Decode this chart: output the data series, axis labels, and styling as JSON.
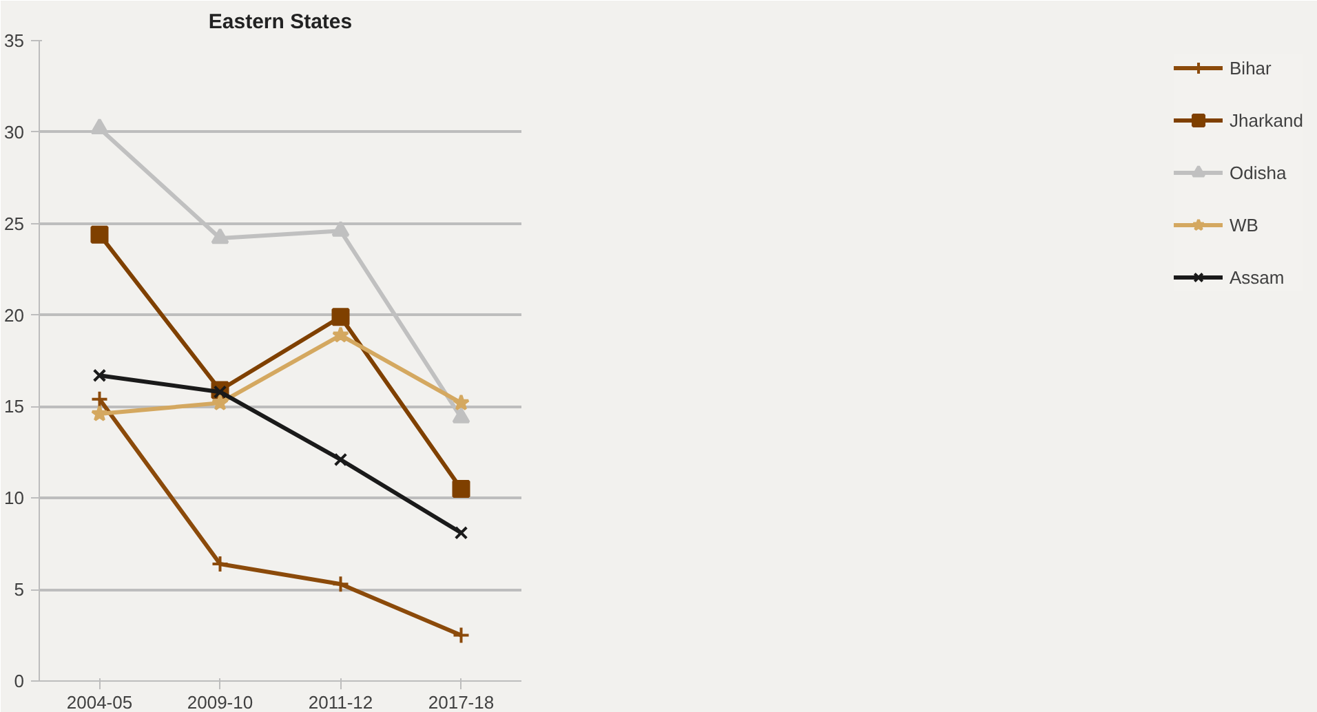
{
  "chart_data": {
    "type": "line",
    "title": "Eastern States",
    "categories": [
      "2004-05",
      "2009-10",
      "2011-12",
      "2017-18"
    ],
    "series": [
      {
        "name": "Bihar",
        "color": "#8b4a0a",
        "marker": "cross",
        "values": [
          15.4,
          6.4,
          5.3,
          2.5
        ]
      },
      {
        "name": "Jharkand",
        "color": "#7f4000",
        "marker": "square",
        "values": [
          24.4,
          15.9,
          19.9,
          10.5
        ]
      },
      {
        "name": "Odisha",
        "color": "#c0c0c0",
        "marker": "triangle",
        "values": [
          30.2,
          24.2,
          24.6,
          14.4
        ]
      },
      {
        "name": "WB",
        "color": "#d4a860",
        "marker": "star",
        "values": [
          14.6,
          15.2,
          18.9,
          15.2
        ]
      },
      {
        "name": "Assam",
        "color": "#1a1a1a",
        "marker": "x",
        "values": [
          16.7,
          15.8,
          12.1,
          8.1
        ]
      }
    ],
    "ylim": [
      0,
      35
    ],
    "yticks": [
      0,
      5,
      10,
      15,
      20,
      25,
      30,
      35
    ],
    "grid": "y",
    "legend": "right",
    "line_style": "solid"
  }
}
